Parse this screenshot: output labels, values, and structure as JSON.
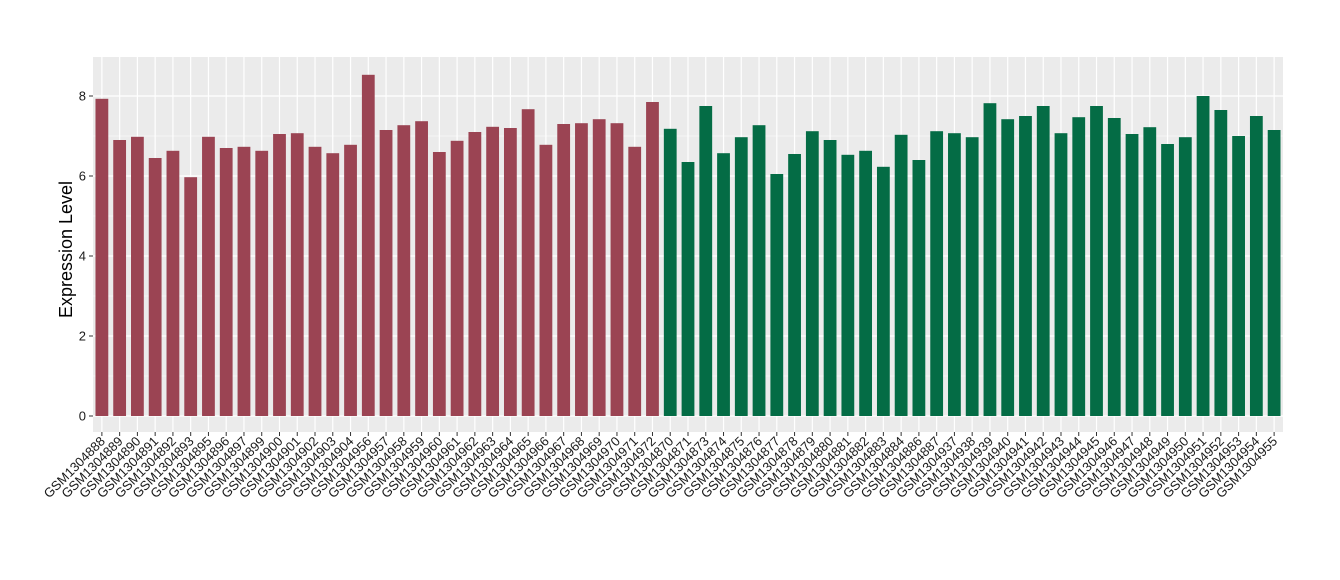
{
  "chart_data": {
    "type": "bar",
    "title": "",
    "xlabel": "",
    "ylabel": "Expression Level",
    "ylim": [
      0,
      8.9
    ],
    "yticks": [
      0,
      2,
      4,
      6,
      8
    ],
    "grid": true,
    "legend": "none",
    "colors": {
      "group1": "#9b4453",
      "group2": "#046c45",
      "panel": "#ebebeb",
      "grid": "#ffffff"
    },
    "categories": [
      "GSM1304888",
      "GSM1304889",
      "GSM1304890",
      "GSM1304891",
      "GSM1304892",
      "GSM1304893",
      "GSM1304895",
      "GSM1304896",
      "GSM1304897",
      "GSM1304899",
      "GSM1304900",
      "GSM1304901",
      "GSM1304902",
      "GSM1304903",
      "GSM1304904",
      "GSM1304956",
      "GSM1304957",
      "GSM1304958",
      "GSM1304959",
      "GSM1304960",
      "GSM1304961",
      "GSM1304962",
      "GSM1304963",
      "GSM1304964",
      "GSM1304965",
      "GSM1304966",
      "GSM1304967",
      "GSM1304968",
      "GSM1304969",
      "GSM1304970",
      "GSM1304971",
      "GSM1304972",
      "GSM1304870",
      "GSM1304871",
      "GSM1304873",
      "GSM1304874",
      "GSM1304875",
      "GSM1304876",
      "GSM1304877",
      "GSM1304878",
      "GSM1304879",
      "GSM1304880",
      "GSM1304881",
      "GSM1304882",
      "GSM1304883",
      "GSM1304884",
      "GSM1304886",
      "GSM1304887",
      "GSM1304937",
      "GSM1304938",
      "GSM1304939",
      "GSM1304940",
      "GSM1304941",
      "GSM1304942",
      "GSM1304943",
      "GSM1304944",
      "GSM1304945",
      "GSM1304946",
      "GSM1304947",
      "GSM1304948",
      "GSM1304949",
      "GSM1304950",
      "GSM1304951",
      "GSM1304952",
      "GSM1304953",
      "GSM1304954",
      "GSM1304955"
    ],
    "values": [
      7.93,
      6.9,
      6.98,
      6.45,
      6.63,
      5.97,
      6.98,
      6.7,
      6.73,
      6.63,
      7.05,
      7.07,
      6.73,
      6.57,
      6.78,
      8.53,
      7.15,
      7.27,
      7.37,
      6.6,
      6.88,
      7.1,
      7.23,
      7.2,
      7.67,
      6.78,
      7.3,
      7.32,
      7.42,
      7.32,
      6.73,
      7.85,
      7.18,
      6.35,
      7.75,
      6.57,
      6.97,
      7.27,
      6.05,
      6.55,
      7.12,
      6.9,
      6.53,
      6.63,
      6.23,
      7.03,
      6.4,
      7.12,
      7.07,
      6.97,
      7.82,
      7.42,
      7.5,
      7.75,
      7.07,
      7.47,
      7.75,
      7.45,
      7.05,
      7.22,
      6.8,
      6.97,
      8.0,
      7.65,
      7.0,
      7.5,
      7.15
    ],
    "groups": [
      1,
      1,
      1,
      1,
      1,
      1,
      1,
      1,
      1,
      1,
      1,
      1,
      1,
      1,
      1,
      1,
      1,
      1,
      1,
      1,
      1,
      1,
      1,
      1,
      1,
      1,
      1,
      1,
      1,
      1,
      1,
      1,
      2,
      2,
      2,
      2,
      2,
      2,
      2,
      2,
      2,
      2,
      2,
      2,
      2,
      2,
      2,
      2,
      2,
      2,
      2,
      2,
      2,
      2,
      2,
      2,
      2,
      2,
      2,
      2,
      2,
      2,
      2,
      2,
      2,
      2,
      2
    ]
  }
}
